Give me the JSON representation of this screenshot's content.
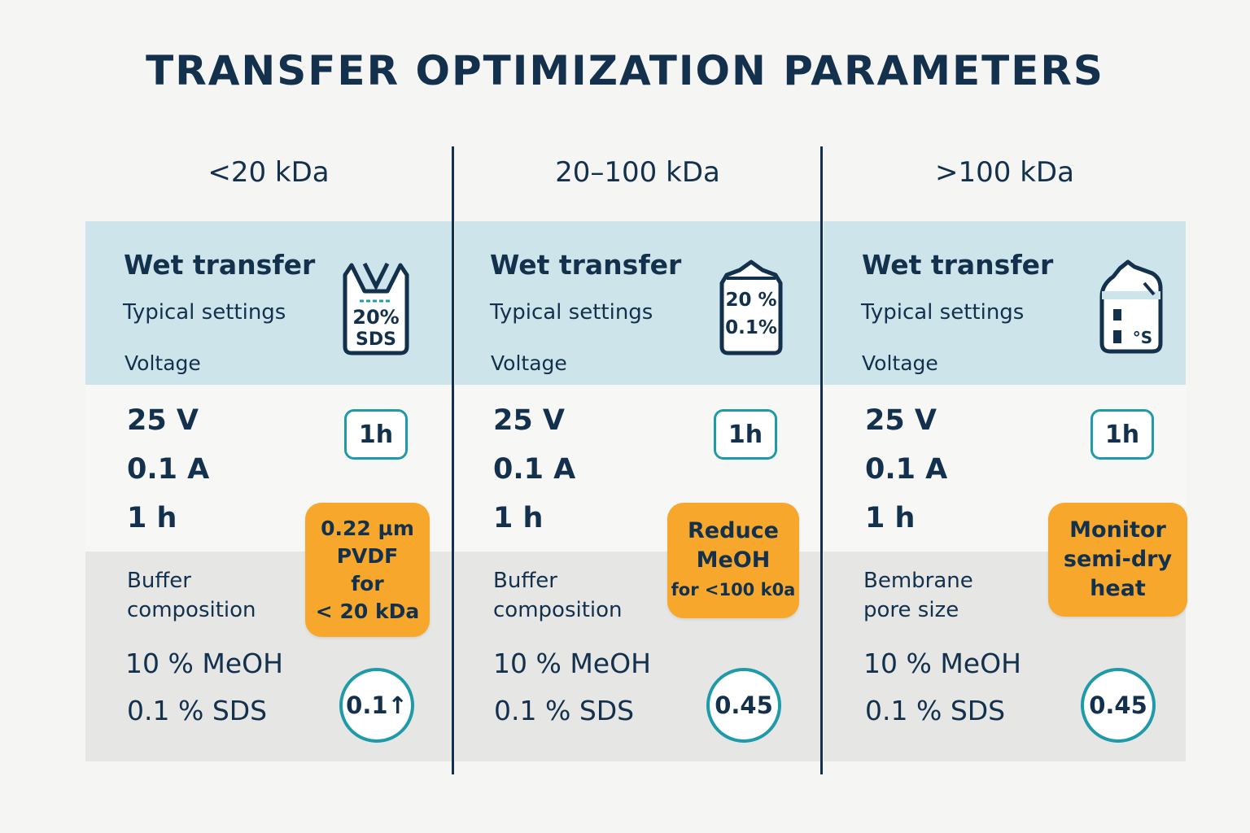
{
  "title": "TRANSFER OPTIMIZATION PARAMETERS",
  "colors": {
    "text": "#13304c",
    "band_blue": "#cde4ea",
    "band_gray": "#e6e6e5",
    "accent_teal": "#1e9aa8",
    "note_orange": "#f7a82c"
  },
  "columns": [
    {
      "header": "<20 kDa",
      "method": "Wet transfer",
      "subtitle": "Typical settings",
      "voltage_label": "Voltage",
      "icon": {
        "name": "buffer-bottle-icon",
        "line1": "20%",
        "line2": "SDS"
      },
      "values": [
        "25 V",
        "0.1 A",
        "1 h"
      ],
      "badge": "1h",
      "label_line1": "Buffer",
      "label_line2": "composition",
      "buffer": [
        "10 % MeOH",
        "0.1 % SDS"
      ],
      "circle": "0.1↑",
      "note": [
        "0.22 µm",
        "PVDF",
        "for",
        "< 20 kDa"
      ]
    },
    {
      "header": "20–100 kDa",
      "method": "Wet transfer",
      "subtitle": "Typical settings",
      "voltage_label": "Voltage",
      "icon": {
        "name": "buffer-bottle-icon",
        "line1": "20 %",
        "line2": "0.1%"
      },
      "values": [
        "25 V",
        "0.1 A",
        "1 h"
      ],
      "badge": "1h",
      "label_line1": "Buffer",
      "label_line2": "composition",
      "buffer": [
        "10 % MeOH",
        "0.1 % SDS"
      ],
      "circle": "0.45",
      "note": [
        "Reduce",
        "MeOH",
        "for <100 k0a"
      ]
    },
    {
      "header": ">100 kDa",
      "method": "Wet transfer",
      "subtitle": "Typical settings",
      "voltage_label": "Voltage",
      "icon": {
        "name": "buffer-bag-icon",
        "line1": "",
        "line2": "°S"
      },
      "values": [
        "25 V",
        "0.1 A",
        "1 h"
      ],
      "badge": "1h",
      "label_line1": "Bembrane",
      "label_line2": "pore size",
      "buffer": [
        "10 % MeOH",
        "0.1 % SDS"
      ],
      "circle": "0.45",
      "note": [
        "Monitor",
        "semi-dry",
        "heat"
      ]
    }
  ]
}
